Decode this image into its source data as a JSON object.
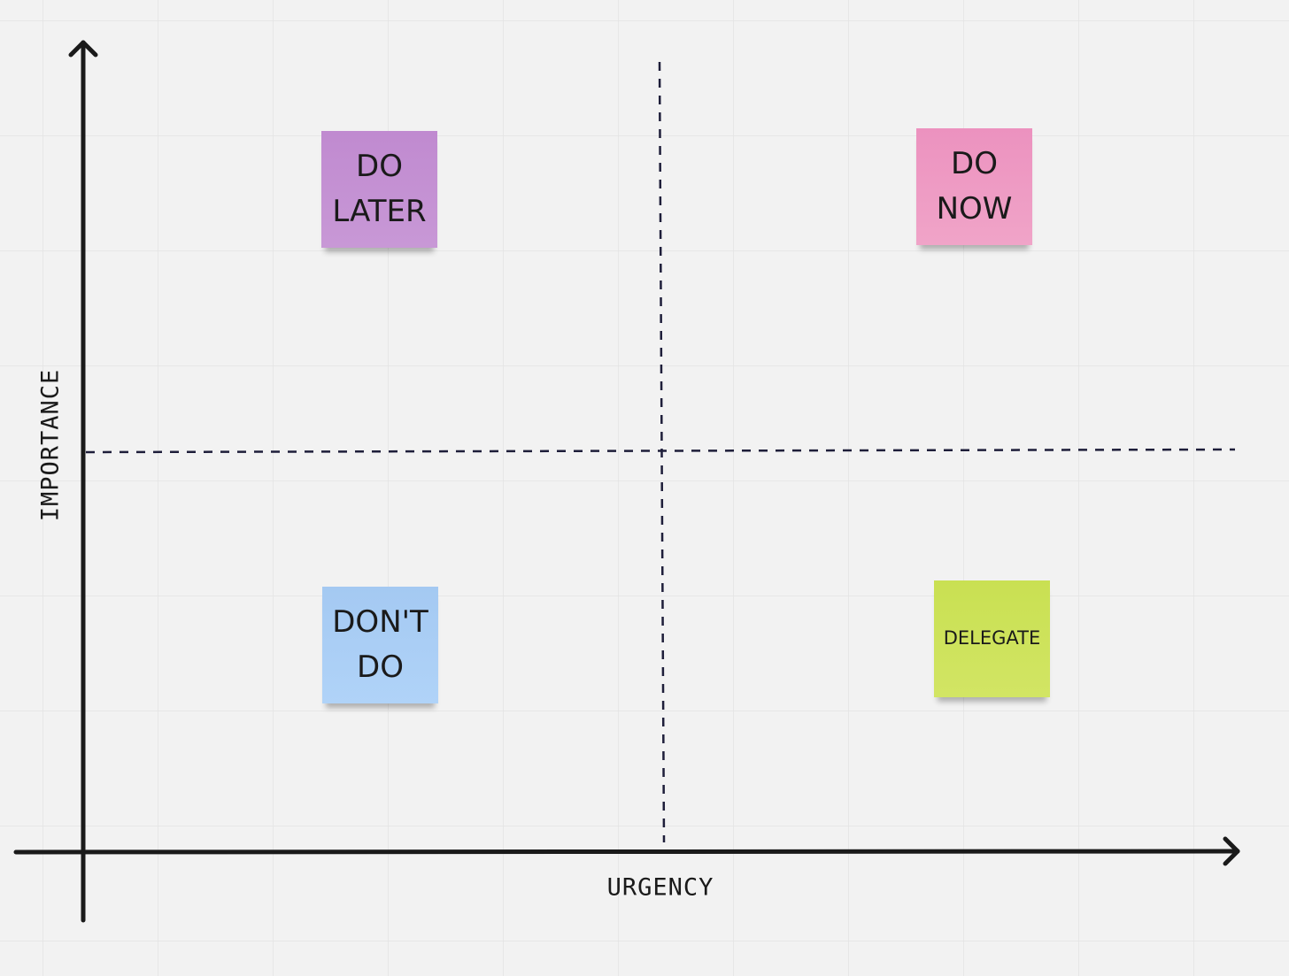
{
  "axes": {
    "y_label": "IMPORTANCE",
    "x_label": "URGENCY"
  },
  "notes": [
    {
      "label": "DO LATER"
    },
    {
      "label": "DO NOW"
    },
    {
      "label": "DON'T DO"
    },
    {
      "label": "DELEGATE"
    }
  ]
}
